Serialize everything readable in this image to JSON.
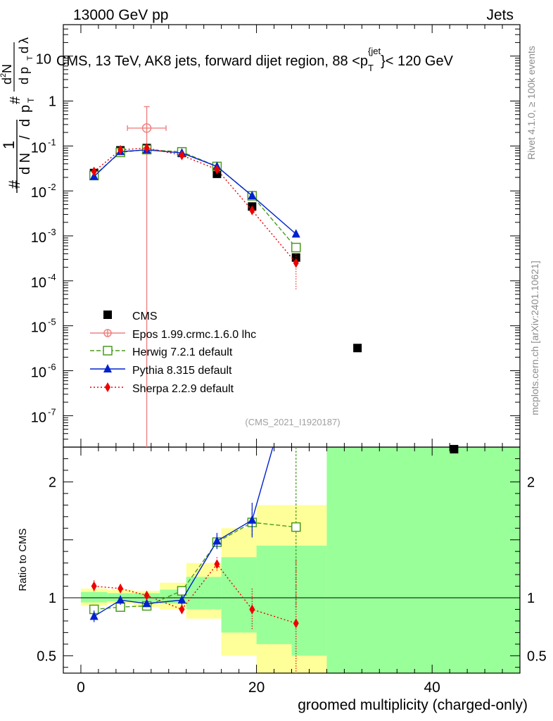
{
  "header": {
    "left": "13000 GeV pp",
    "right": "Jets"
  },
  "chart_data": {
    "type": "line",
    "title": "CMS, 13 TeV, AK8 jets, forward dijet region, 88 <p_T^{jet}< 120 GeV",
    "title_parts": {
      "pre": "CMS, 13 TeV, AK8 jets, forward dijet region, 88 <p",
      "sub": "T",
      "sup": "{jet",
      "post": "}< 120 GeV"
    },
    "ylabel_main": {
      "hash_top": "#",
      "hash_bottom": "#",
      "one": "1",
      "dN": "d N",
      "slash": "/",
      "d": "d",
      "p": "p",
      "T": "T",
      "d2N": "d",
      "two": "2",
      "N": "N",
      "dp": "d p",
      "dlambda": "d",
      "lambda": "λ"
    },
    "ylabel_ratio": "Ratio to CMS",
    "xlabel": "groomed multiplicity (charged-only)",
    "xlim": [
      -2,
      50
    ],
    "ylim_main": [
      2e-08,
      50
    ],
    "ylim_ratio": [
      0.35,
      2.3
    ],
    "x_ticks": [
      "0",
      "20",
      "40"
    ],
    "y_ticks_main": [
      {
        "base": "10",
        "exp": "",
        "v": 10,
        "label": "10"
      },
      {
        "base": "1",
        "exp": "",
        "v": 1,
        "label": "1"
      },
      {
        "base": "10",
        "exp": "-1",
        "v": 0.1
      },
      {
        "base": "10",
        "exp": "-2",
        "v": 0.01
      },
      {
        "base": "10",
        "exp": "-3",
        "v": 0.001
      },
      {
        "base": "10",
        "exp": "-4",
        "v": 0.0001
      },
      {
        "base": "10",
        "exp": "-5",
        "v": 1e-05
      },
      {
        "base": "10",
        "exp": "-6",
        "v": 1e-06
      },
      {
        "base": "10",
        "exp": "-7",
        "v": 1e-07
      }
    ],
    "y_ticks_ratio": [
      {
        "v": 2,
        "label": "2"
      },
      {
        "v": 1,
        "label": "1"
      },
      {
        "v": 0.5,
        "label": "0.5"
      }
    ],
    "bin_edges": [
      0,
      3,
      6,
      9,
      12,
      16,
      20,
      24,
      28,
      50
    ],
    "band_yellow": [
      [
        0.93,
        1.08
      ],
      [
        0.95,
        1.07
      ],
      [
        0.92,
        1.06
      ],
      [
        0.9,
        1.13
      ],
      [
        0.82,
        1.3
      ],
      [
        0.5,
        1.6
      ],
      [
        0.35,
        1.8
      ],
      [
        0.35,
        1.8
      ],
      [
        0.35,
        2.3
      ]
    ],
    "band_green": [
      [
        0.96,
        1.05
      ],
      [
        0.97,
        1.04
      ],
      [
        0.96,
        1.04
      ],
      [
        0.95,
        1.07
      ],
      [
        0.9,
        1.18
      ],
      [
        0.7,
        1.35
      ],
      [
        0.6,
        1.45
      ],
      [
        0.5,
        1.45
      ],
      [
        0.35,
        2.3
      ]
    ],
    "series": [
      {
        "name": "CMS",
        "style": "data",
        "color": "#000000",
        "x": [
          1.5,
          4.5,
          7.5,
          11.5,
          15.5,
          19.5,
          24.5,
          31.5,
          42.5
        ],
        "y": [
          0.025,
          0.08,
          0.09,
          0.07,
          0.024,
          0.0045,
          0.00033,
          3.2e-06,
          1.8e-08
        ]
      },
      {
        "name": "Epos 1.99.crmc.1.6.0 lhc",
        "style": "epos",
        "color": "#f08080",
        "x": [
          7.5
        ],
        "y": [
          0.25
        ],
        "yerr_lo": [
          1e-08
        ],
        "yerr_hi": [
          0.5
        ],
        "xerr": [
          2.2
        ]
      },
      {
        "name": "Herwig 7.2.1 default",
        "style": "herwig",
        "color": "#4a9a1e",
        "x": [
          1.5,
          4.5,
          7.5,
          11.5,
          15.5,
          19.5,
          24.5
        ],
        "y": [
          0.022,
          0.072,
          0.083,
          0.074,
          0.035,
          0.0078,
          0.00055
        ],
        "ratio": [
          0.9,
          0.92,
          0.93,
          1.06,
          1.48,
          1.65,
          1.61
        ],
        "ratio_err": [
          0.04,
          0.03,
          0.03,
          0.04,
          0.06,
          0.12,
          0.7
        ]
      },
      {
        "name": "Pythia 8.315 default",
        "style": "pythia",
        "color": "#0022cc",
        "x": [
          1.5,
          4.5,
          7.5,
          11.5,
          15.5,
          19.5,
          24.5
        ],
        "y": [
          0.021,
          0.075,
          0.082,
          0.07,
          0.035,
          0.0078,
          0.0011
        ],
        "ratio": [
          0.84,
          0.98,
          0.95,
          0.98,
          1.49,
          1.67,
          3.0
        ],
        "ratio_err": [
          0.05,
          0.04,
          0.03,
          0.04,
          0.07,
          0.15,
          0.4
        ]
      },
      {
        "name": "Sherpa 2.2.9 default",
        "style": "sherpa",
        "color": "#ee0000",
        "x": [
          1.5,
          4.5,
          7.5,
          11.5,
          15.5,
          19.5,
          24.5
        ],
        "y": [
          0.027,
          0.082,
          0.09,
          0.062,
          0.03,
          0.0037,
          0.00025
        ],
        "ratio": [
          1.1,
          1.08,
          1.02,
          0.9,
          1.29,
          0.9,
          0.78
        ],
        "ratio_err": [
          0.05,
          0.04,
          0.03,
          0.04,
          0.06,
          0.18,
          0.55
        ],
        "err_lo": [
          0.002,
          0.005,
          0.005,
          0.005,
          0.003,
          0.0008,
          0.000185
        ],
        "err_hi": [
          0.002,
          0.005,
          0.005,
          0.005,
          0.003,
          0.0008,
          0.00015
        ]
      }
    ],
    "ref_tag": "(CMS_2021_I1920187)",
    "side_left": "mcplots.cern.ch [arXiv:2401.10621]",
    "side_right": "Rivet 4.1.0, ≥ 100k events"
  }
}
